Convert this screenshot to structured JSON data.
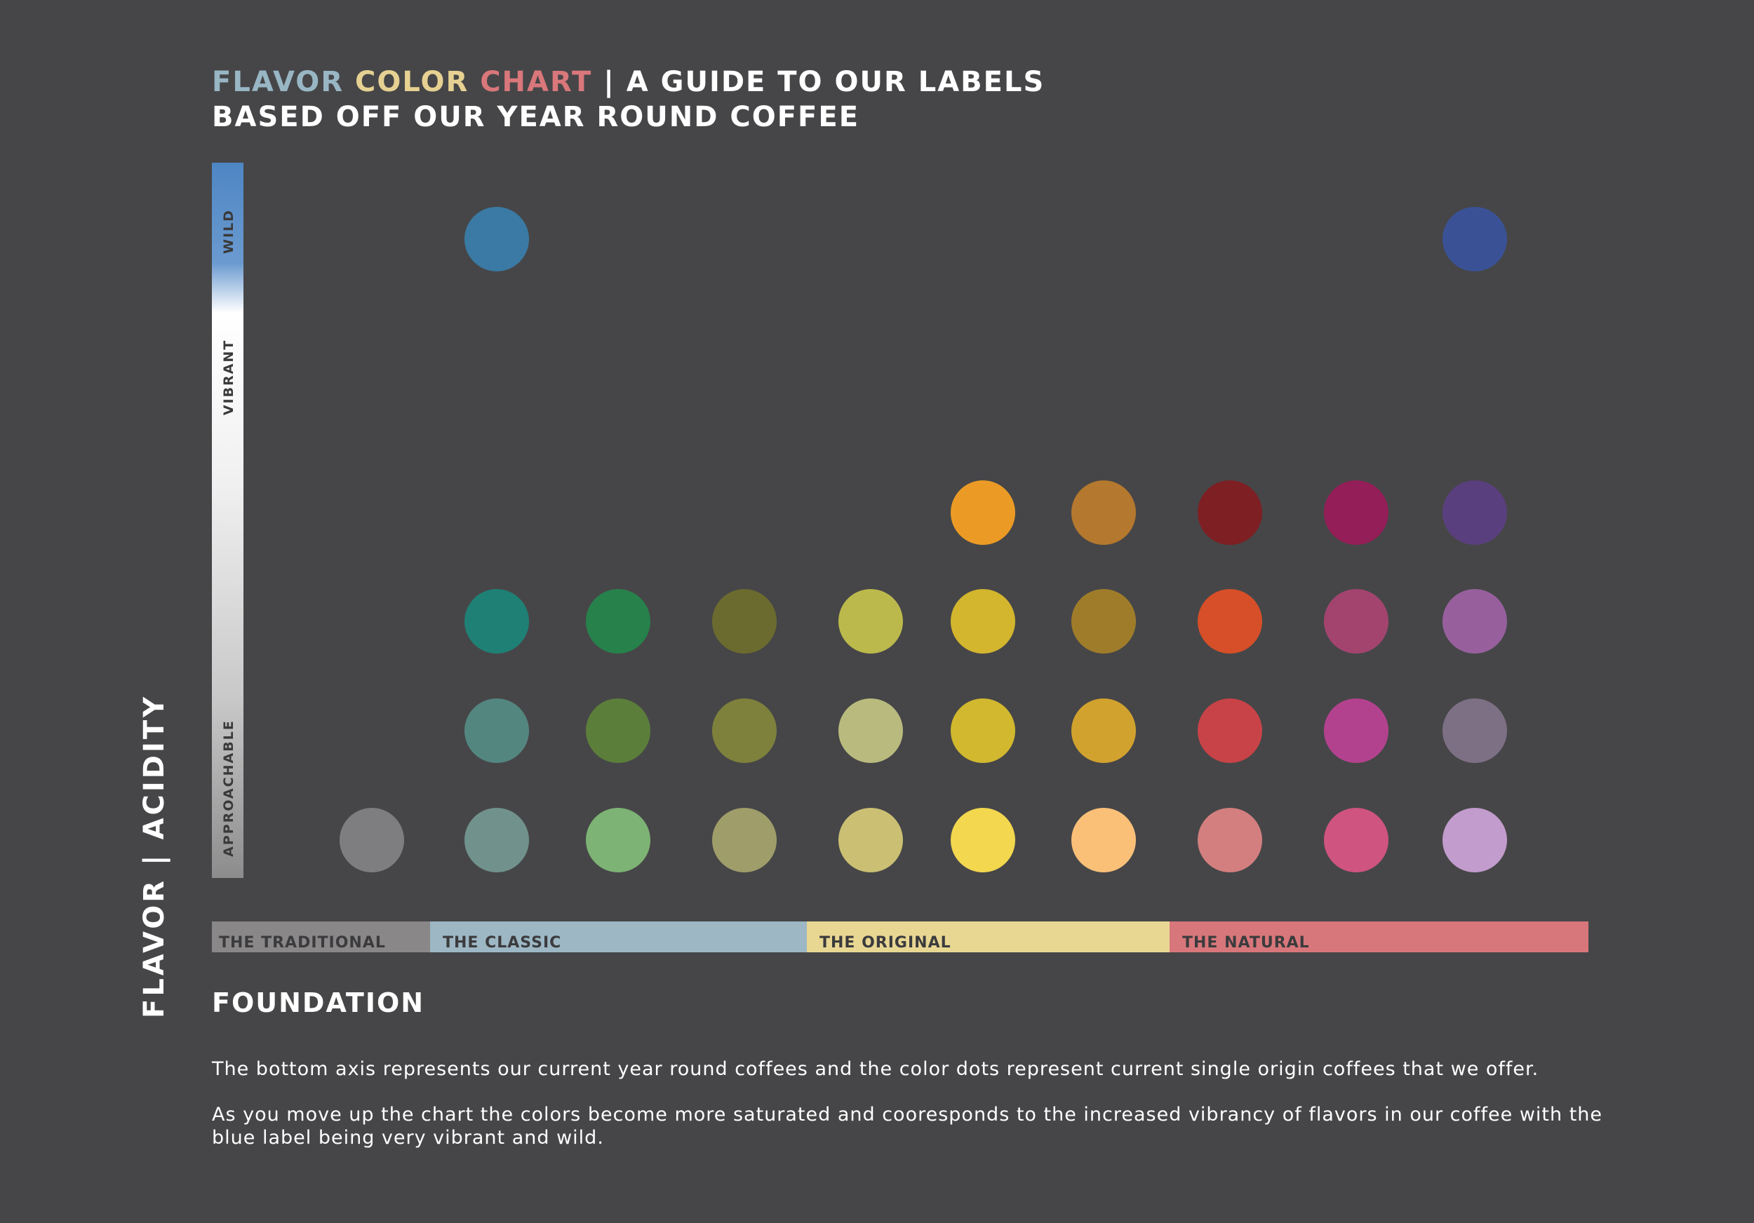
{
  "header": {
    "title_parts": [
      {
        "text": "FLAVOR ",
        "color": "#98b6c4"
      },
      {
        "text": "COLOR ",
        "color": "#e6d192"
      },
      {
        "text": "CHART",
        "color": "#d9777b"
      },
      {
        "text": " | A GUIDE TO OUR LABELS",
        "color": "#ffffff"
      }
    ],
    "subtitle": "BASED OFF OUR YEAR ROUND COFFEE"
  },
  "axis": {
    "title": "FLAVOR | ACIDITY",
    "scale_labels": [
      "WILD",
      "VIBRANT",
      "APPROACHABLE"
    ]
  },
  "chart_data": {
    "type": "scatter",
    "title": "FLAVOR COLOR CHART | A GUIDE TO OUR LABELS",
    "ylabel": "FLAVOR | ACIDITY",
    "columns": 10,
    "rows": [
      "row1",
      "row2",
      "row3",
      "row4",
      "row5"
    ],
    "xlim": [
      1,
      10
    ],
    "ylim": [
      1,
      5
    ],
    "points": [
      {
        "x": 1,
        "y": 1,
        "color": "#7e7e80"
      },
      {
        "x": 2,
        "y": 1,
        "color": "#71928c"
      },
      {
        "x": 3,
        "y": 1,
        "color": "#7db374"
      },
      {
        "x": 4,
        "y": 1,
        "color": "#9f9d6a"
      },
      {
        "x": 5,
        "y": 1,
        "color": "#cbbf73"
      },
      {
        "x": 6,
        "y": 1,
        "color": "#f2d74f"
      },
      {
        "x": 7,
        "y": 1,
        "color": "#fac078"
      },
      {
        "x": 8,
        "y": 1,
        "color": "#d37f7f"
      },
      {
        "x": 9,
        "y": 1,
        "color": "#cf547f"
      },
      {
        "x": 10,
        "y": 1,
        "color": "#c29ccc"
      },
      {
        "x": 2,
        "y": 2,
        "color": "#548680"
      },
      {
        "x": 3,
        "y": 2,
        "color": "#5c7e3b"
      },
      {
        "x": 4,
        "y": 2,
        "color": "#7e813b"
      },
      {
        "x": 5,
        "y": 2,
        "color": "#b9bb7e"
      },
      {
        "x": 6,
        "y": 2,
        "color": "#d1b82e"
      },
      {
        "x": 7,
        "y": 2,
        "color": "#d2a22e"
      },
      {
        "x": 8,
        "y": 2,
        "color": "#c84347"
      },
      {
        "x": 9,
        "y": 2,
        "color": "#b3428e"
      },
      {
        "x": 10,
        "y": 2,
        "color": "#7e7084"
      },
      {
        "x": 2,
        "y": 3,
        "color": "#1f8075"
      },
      {
        "x": 3,
        "y": 3,
        "color": "#27814b"
      },
      {
        "x": 4,
        "y": 3,
        "color": "#6b6b2f"
      },
      {
        "x": 5,
        "y": 3,
        "color": "#bbb94c"
      },
      {
        "x": 6,
        "y": 3,
        "color": "#d3b52e"
      },
      {
        "x": 7,
        "y": 3,
        "color": "#9f7c2a"
      },
      {
        "x": 8,
        "y": 3,
        "color": "#d64f29"
      },
      {
        "x": 9,
        "y": 3,
        "color": "#a3446f"
      },
      {
        "x": 10,
        "y": 3,
        "color": "#97609d"
      },
      {
        "x": 6,
        "y": 4,
        "color": "#eb9b25"
      },
      {
        "x": 7,
        "y": 4,
        "color": "#b4782e"
      },
      {
        "x": 8,
        "y": 4,
        "color": "#7e1f23"
      },
      {
        "x": 9,
        "y": 4,
        "color": "#941e57"
      },
      {
        "x": 10,
        "y": 4,
        "color": "#5a3f7e"
      },
      {
        "x": 2,
        "y": 5,
        "color": "#3a7aa4"
      },
      {
        "x": 10,
        "y": 5,
        "color": "#3a5295"
      }
    ],
    "categories": [
      {
        "label": "THE TRADITIONAL",
        "color": "#898788",
        "from": 0,
        "to": 1
      },
      {
        "label": "THE CLASSIC",
        "color": "#9db7c4",
        "from": 1,
        "to": 4
      },
      {
        "label": "THE ORIGINAL",
        "color": "#e8d793",
        "from": 4,
        "to": 7
      },
      {
        "label": "THE NATURAL",
        "color": "#d8777b",
        "from": 7,
        "to": 10
      }
    ]
  },
  "foundation": {
    "heading": "FOUNDATION",
    "paragraph1": "The bottom axis represents our current year round coffees and the color dots represent current single origin coffees that we offer.",
    "paragraph2": "As you move up the chart the colors become more saturated and cooresponds to the increased vibrancy of flavors in our coffee with the blue label being very vibrant and wild."
  }
}
